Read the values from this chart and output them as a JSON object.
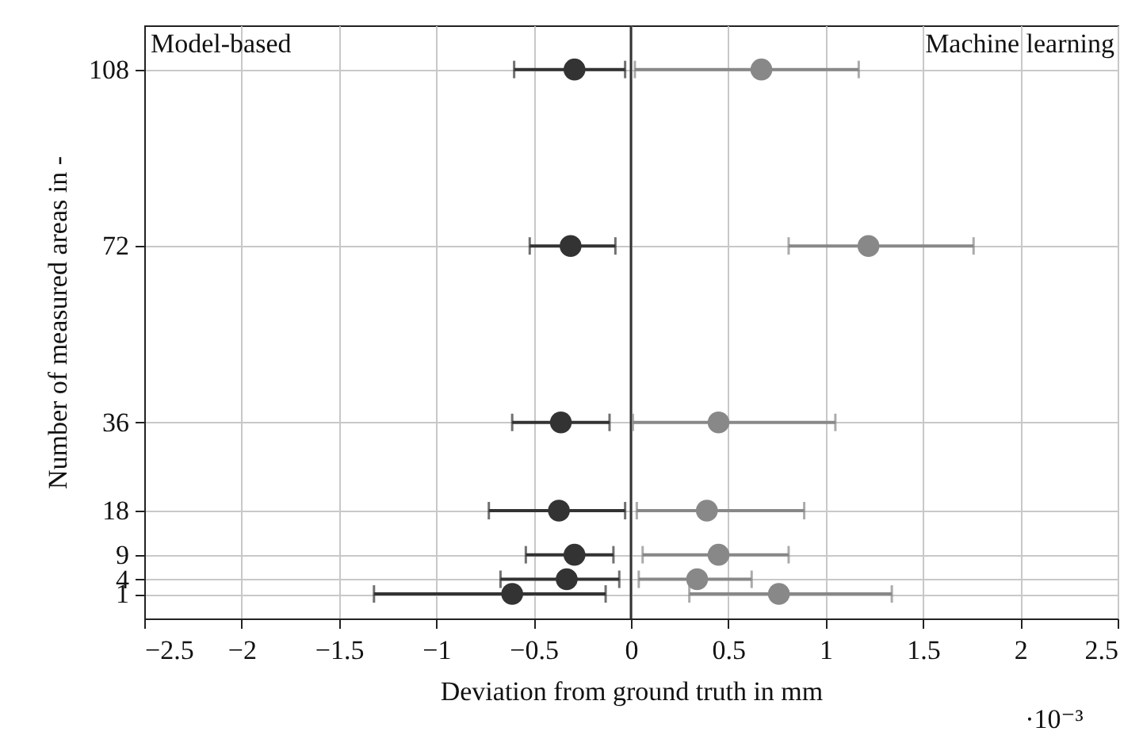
{
  "chart_data": {
    "type": "scatter",
    "xlabel": "Deviation from ground truth in mm",
    "ylabel": "Number of measured areas in -",
    "annotations": [
      "Model-based",
      "Machine learning",
      "·10⁻³"
    ],
    "xlim": [
      -2.5,
      2.5
    ],
    "xticks": [
      -2.5,
      -2,
      -1.5,
      -1,
      -0.5,
      0,
      0.5,
      1,
      1.5,
      2,
      2.5
    ],
    "ylim": [
      -4,
      117
    ],
    "yticks": [
      1,
      4,
      9,
      18,
      36,
      72,
      108
    ],
    "grid": true,
    "marker": "circle",
    "ref_lines": [
      {
        "axis": "x",
        "value": 0,
        "color": "#333333"
      }
    ],
    "series": [
      {
        "color": "#333333",
        "x": [
          -0.29,
          -0.31,
          -0.36,
          -0.37,
          -0.29,
          -0.33,
          -0.61
        ],
        "values": [
          108,
          72,
          36,
          18,
          9,
          4,
          1
        ],
        "xerrors": [
          [
            -0.6,
            -0.03
          ],
          [
            -0.52,
            -0.08
          ],
          [
            -0.61,
            -0.11
          ],
          [
            -0.73,
            -0.03
          ],
          [
            -0.54,
            -0.09
          ],
          [
            -0.67,
            -0.06
          ],
          [
            -1.32,
            -0.13
          ]
        ]
      },
      {
        "color": "#888888",
        "x": [
          0.67,
          1.22,
          0.45,
          0.39,
          0.45,
          0.34,
          0.76
        ],
        "values": [
          108,
          72,
          36,
          18,
          9,
          4,
          1
        ],
        "xerrors": [
          [
            0.02,
            1.17
          ],
          [
            0.81,
            1.76
          ],
          [
            0.01,
            1.05
          ],
          [
            0.03,
            0.89
          ],
          [
            0.06,
            0.81
          ],
          [
            0.04,
            0.62
          ],
          [
            0.3,
            1.34
          ]
        ]
      }
    ]
  }
}
